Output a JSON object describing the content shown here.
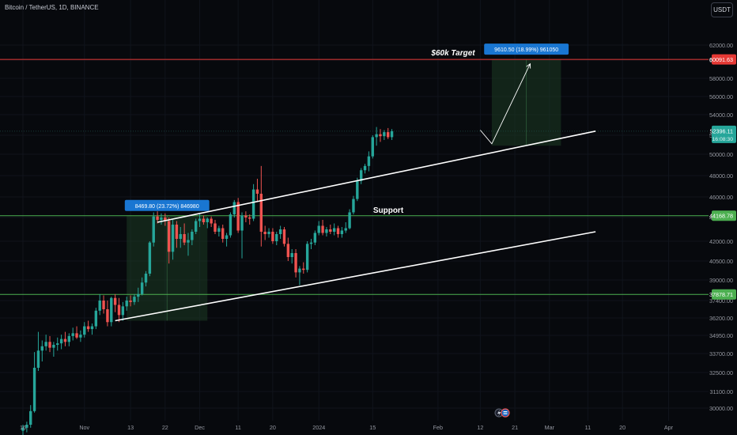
{
  "header": {
    "symbol_title": "Bitcoin / TetherUS, 1D, BINANCE",
    "currency_button": "USDT"
  },
  "colors": {
    "background": "#07090d",
    "up_candle": "#26a69a",
    "down_candle": "#ef5350",
    "target_line": "#e53935",
    "level_line": "#4caf50",
    "channel_line": "#ffffff",
    "label_blue": "#1976d2"
  },
  "chart_data": {
    "type": "candlestick",
    "symbol": "Bitcoin / TetherUS",
    "interval": "1D",
    "exchange": "BINANCE",
    "y_axis_ticks": [
      62000,
      60000,
      58000,
      56000,
      54000,
      52000,
      50000,
      48000,
      46000,
      44000,
      42000,
      40500,
      39000,
      37400,
      36200,
      34950,
      33700,
      32500,
      31100,
      30000
    ],
    "y_axis_tick_labels": [
      "62000.00",
      "60000.00",
      "58000.00",
      "56000.00",
      "54000.00",
      "52000.00",
      "50000.00",
      "48000.00",
      "46000.00",
      "44000.00",
      "42000.00",
      "40500.00",
      "39000.00",
      "37400.00",
      "36200.00",
      "34950.00",
      "33700.00",
      "32500.00",
      "31100.00",
      "30000.00"
    ],
    "x_axis_ticks": [
      {
        "label": "16",
        "day": 0
      },
      {
        "label": "Nov",
        "day": 16
      },
      {
        "label": "13",
        "day": 28
      },
      {
        "label": "22",
        "day": 37
      },
      {
        "label": "Dec",
        "day": 46
      },
      {
        "label": "11",
        "day": 56
      },
      {
        "label": "20",
        "day": 65
      },
      {
        "label": "2024",
        "day": 77
      },
      {
        "label": "15",
        "day": 91
      },
      {
        "label": "Feb",
        "day": 108
      },
      {
        "label": "12",
        "day": 119
      },
      {
        "label": "21",
        "day": 128
      },
      {
        "label": "Mar",
        "day": 137
      },
      {
        "label": "11",
        "day": 147
      },
      {
        "label": "20",
        "day": 156
      },
      {
        "label": "Apr",
        "day": 168
      }
    ],
    "candles": [
      {
        "o": 28500,
        "h": 28900,
        "l": 28200,
        "c": 28700
      },
      {
        "o": 28700,
        "h": 29100,
        "l": 28400,
        "c": 28900
      },
      {
        "o": 28900,
        "h": 30200,
        "l": 28700,
        "c": 29800
      },
      {
        "o": 29800,
        "h": 33800,
        "l": 29700,
        "c": 32800
      },
      {
        "o": 32800,
        "h": 35200,
        "l": 32600,
        "c": 33900
      },
      {
        "o": 33900,
        "h": 34600,
        "l": 33200,
        "c": 34200
      },
      {
        "o": 34200,
        "h": 35000,
        "l": 33900,
        "c": 34500
      },
      {
        "o": 34500,
        "h": 34900,
        "l": 33800,
        "c": 34100
      },
      {
        "o": 34100,
        "h": 34500,
        "l": 33500,
        "c": 34300
      },
      {
        "o": 34300,
        "h": 34800,
        "l": 33900,
        "c": 34400
      },
      {
        "o": 34400,
        "h": 35000,
        "l": 34000,
        "c": 34700
      },
      {
        "o": 34700,
        "h": 35200,
        "l": 34200,
        "c": 34500
      },
      {
        "o": 34500,
        "h": 35100,
        "l": 34200,
        "c": 34900
      },
      {
        "o": 34900,
        "h": 35500,
        "l": 34600,
        "c": 35100
      },
      {
        "o": 35100,
        "h": 35600,
        "l": 34700,
        "c": 34800
      },
      {
        "o": 34800,
        "h": 35300,
        "l": 34500,
        "c": 35000
      },
      {
        "o": 35000,
        "h": 35900,
        "l": 34800,
        "c": 35600
      },
      {
        "o": 35600,
        "h": 36000,
        "l": 35200,
        "c": 35400
      },
      {
        "o": 35400,
        "h": 35800,
        "l": 35000,
        "c": 35600
      },
      {
        "o": 35600,
        "h": 36900,
        "l": 35400,
        "c": 36700
      },
      {
        "o": 36700,
        "h": 37900,
        "l": 36400,
        "c": 37400
      },
      {
        "o": 37400,
        "h": 37800,
        "l": 36500,
        "c": 36800
      },
      {
        "o": 36800,
        "h": 37400,
        "l": 35600,
        "c": 35900
      },
      {
        "o": 35900,
        "h": 37700,
        "l": 35600,
        "c": 37600
      },
      {
        "o": 37600,
        "h": 37900,
        "l": 36600,
        "c": 37100
      },
      {
        "o": 37100,
        "h": 37600,
        "l": 35900,
        "c": 36400
      },
      {
        "o": 36400,
        "h": 37300,
        "l": 36000,
        "c": 37000
      },
      {
        "o": 37000,
        "h": 37700,
        "l": 36700,
        "c": 37400
      },
      {
        "o": 37400,
        "h": 37800,
        "l": 37000,
        "c": 37300
      },
      {
        "o": 37300,
        "h": 37900,
        "l": 37100,
        "c": 37700
      },
      {
        "o": 37700,
        "h": 38400,
        "l": 37300,
        "c": 37900
      },
      {
        "o": 37900,
        "h": 39200,
        "l": 37800,
        "c": 38800
      },
      {
        "o": 38800,
        "h": 39700,
        "l": 38500,
        "c": 39500
      },
      {
        "o": 39500,
        "h": 42000,
        "l": 39300,
        "c": 41900
      },
      {
        "o": 41900,
        "h": 44500,
        "l": 41600,
        "c": 44100
      },
      {
        "o": 44100,
        "h": 44600,
        "l": 43500,
        "c": 43800
      },
      {
        "o": 43800,
        "h": 44400,
        "l": 43400,
        "c": 44000
      },
      {
        "o": 44000,
        "h": 44400,
        "l": 43300,
        "c": 43700
      },
      {
        "o": 43700,
        "h": 44000,
        "l": 40300,
        "c": 41200
      },
      {
        "o": 41200,
        "h": 43800,
        "l": 40600,
        "c": 43400
      },
      {
        "o": 43400,
        "h": 43700,
        "l": 41500,
        "c": 42200
      },
      {
        "o": 42200,
        "h": 43200,
        "l": 41500,
        "c": 42600
      },
      {
        "o": 42600,
        "h": 43500,
        "l": 41700,
        "c": 41900
      },
      {
        "o": 41900,
        "h": 42700,
        "l": 40900,
        "c": 42100
      },
      {
        "o": 42100,
        "h": 43000,
        "l": 41700,
        "c": 42800
      },
      {
        "o": 42800,
        "h": 43900,
        "l": 42600,
        "c": 43700
      },
      {
        "o": 43700,
        "h": 44300,
        "l": 43200,
        "c": 43900
      },
      {
        "o": 43900,
        "h": 44200,
        "l": 43400,
        "c": 43600
      },
      {
        "o": 43600,
        "h": 44000,
        "l": 43100,
        "c": 43900
      },
      {
        "o": 43900,
        "h": 44100,
        "l": 43200,
        "c": 43500
      },
      {
        "o": 43500,
        "h": 43800,
        "l": 42600,
        "c": 42800
      },
      {
        "o": 42800,
        "h": 43300,
        "l": 42400,
        "c": 43100
      },
      {
        "o": 43100,
        "h": 43400,
        "l": 41900,
        "c": 42200
      },
      {
        "o": 42200,
        "h": 42700,
        "l": 41600,
        "c": 42500
      },
      {
        "o": 42500,
        "h": 44500,
        "l": 42300,
        "c": 44300
      },
      {
        "o": 44300,
        "h": 45700,
        "l": 44000,
        "c": 45500
      },
      {
        "o": 45500,
        "h": 45900,
        "l": 42700,
        "c": 42900
      },
      {
        "o": 42900,
        "h": 44500,
        "l": 40700,
        "c": 44200
      },
      {
        "o": 44200,
        "h": 44600,
        "l": 43600,
        "c": 44000
      },
      {
        "o": 44000,
        "h": 44300,
        "l": 43400,
        "c": 43900
      },
      {
        "o": 43900,
        "h": 47200,
        "l": 43700,
        "c": 46700
      },
      {
        "o": 46700,
        "h": 47700,
        "l": 45500,
        "c": 46300
      },
      {
        "o": 46300,
        "h": 48900,
        "l": 41600,
        "c": 42800
      },
      {
        "o": 42800,
        "h": 43300,
        "l": 42100,
        "c": 42600
      },
      {
        "o": 42600,
        "h": 43100,
        "l": 42300,
        "c": 42800
      },
      {
        "o": 42800,
        "h": 43100,
        "l": 41800,
        "c": 42000
      },
      {
        "o": 42000,
        "h": 42800,
        "l": 41700,
        "c": 42600
      },
      {
        "o": 42600,
        "h": 43300,
        "l": 42200,
        "c": 43000
      },
      {
        "o": 43000,
        "h": 43200,
        "l": 41600,
        "c": 41800
      },
      {
        "o": 41800,
        "h": 42300,
        "l": 40500,
        "c": 40800
      },
      {
        "o": 40800,
        "h": 41400,
        "l": 40300,
        "c": 41100
      },
      {
        "o": 41100,
        "h": 41400,
        "l": 39200,
        "c": 39600
      },
      {
        "o": 39600,
        "h": 40100,
        "l": 38600,
        "c": 39900
      },
      {
        "o": 39900,
        "h": 40400,
        "l": 39500,
        "c": 39800
      },
      {
        "o": 39800,
        "h": 42000,
        "l": 39600,
        "c": 41800
      },
      {
        "o": 41800,
        "h": 42200,
        "l": 41400,
        "c": 41900
      },
      {
        "o": 41900,
        "h": 42900,
        "l": 41700,
        "c": 42700
      },
      {
        "o": 42700,
        "h": 43700,
        "l": 42500,
        "c": 43300
      },
      {
        "o": 43300,
        "h": 43800,
        "l": 42500,
        "c": 42700
      },
      {
        "o": 42700,
        "h": 43200,
        "l": 42400,
        "c": 43000
      },
      {
        "o": 43000,
        "h": 43400,
        "l": 42600,
        "c": 42800
      },
      {
        "o": 42800,
        "h": 43500,
        "l": 42500,
        "c": 43100
      },
      {
        "o": 43100,
        "h": 43300,
        "l": 42300,
        "c": 42600
      },
      {
        "o": 42600,
        "h": 43200,
        "l": 42300,
        "c": 42900
      },
      {
        "o": 42900,
        "h": 43600,
        "l": 42700,
        "c": 43100
      },
      {
        "o": 43100,
        "h": 44800,
        "l": 43000,
        "c": 44500
      },
      {
        "o": 44500,
        "h": 46100,
        "l": 44300,
        "c": 45800
      },
      {
        "o": 45800,
        "h": 47800,
        "l": 45600,
        "c": 47500
      },
      {
        "o": 47500,
        "h": 48700,
        "l": 47200,
        "c": 48500
      },
      {
        "o": 48500,
        "h": 49100,
        "l": 48200,
        "c": 48900
      },
      {
        "o": 48900,
        "h": 50300,
        "l": 48400,
        "c": 49800
      },
      {
        "o": 49800,
        "h": 52000,
        "l": 49600,
        "c": 51800
      },
      {
        "o": 51800,
        "h": 52800,
        "l": 50900,
        "c": 52100
      },
      {
        "o": 52100,
        "h": 52600,
        "l": 51300,
        "c": 51900
      },
      {
        "o": 51900,
        "h": 52500,
        "l": 51500,
        "c": 52300
      },
      {
        "o": 52300,
        "h": 52700,
        "l": 51600,
        "c": 51800
      },
      {
        "o": 51800,
        "h": 52600,
        "l": 51500,
        "c": 52396.11
      }
    ],
    "horizontal_levels": [
      {
        "name": "target",
        "value": 60091.63,
        "label": "60091.63",
        "color": "#e53935"
      },
      {
        "name": "support",
        "value": 44168.78,
        "label": "44168.78",
        "color": "#4caf50"
      },
      {
        "name": "lower",
        "value": 37878.71,
        "label": "37878.71",
        "color": "#4caf50"
      }
    ],
    "current_price": {
      "value": 52396.11,
      "label": "52396.11",
      "countdown": "16:08:30"
    },
    "channel_lines": [
      {
        "name": "upper",
        "start": {
          "day": 35,
          "price": 43600
        },
        "end": {
          "day": 149,
          "price": 52400
        }
      },
      {
        "name": "lower",
        "start": {
          "day": 24,
          "price": 36000
        },
        "end": {
          "day": 149,
          "price": 42800
        }
      }
    ],
    "measure_boxes": [
      {
        "name": "rally-box",
        "day_start": 27,
        "day_end": 48,
        "price_low": 36000,
        "price_high": 44168.78,
        "label": "8469.80 (23.72%) 846980"
      },
      {
        "name": "target-box",
        "day_start": 122,
        "day_end": 140,
        "price_low": 50900,
        "price_high": 60091.63,
        "label": "9610.50 (18.99%) 961050"
      }
    ],
    "projection_path": [
      {
        "day": 119,
        "price": 52500
      },
      {
        "day": 122,
        "price": 51100
      },
      {
        "day": 132,
        "price": 59600
      }
    ],
    "annotations": {
      "target_text": "$60k Target",
      "support_text": "Support"
    }
  }
}
